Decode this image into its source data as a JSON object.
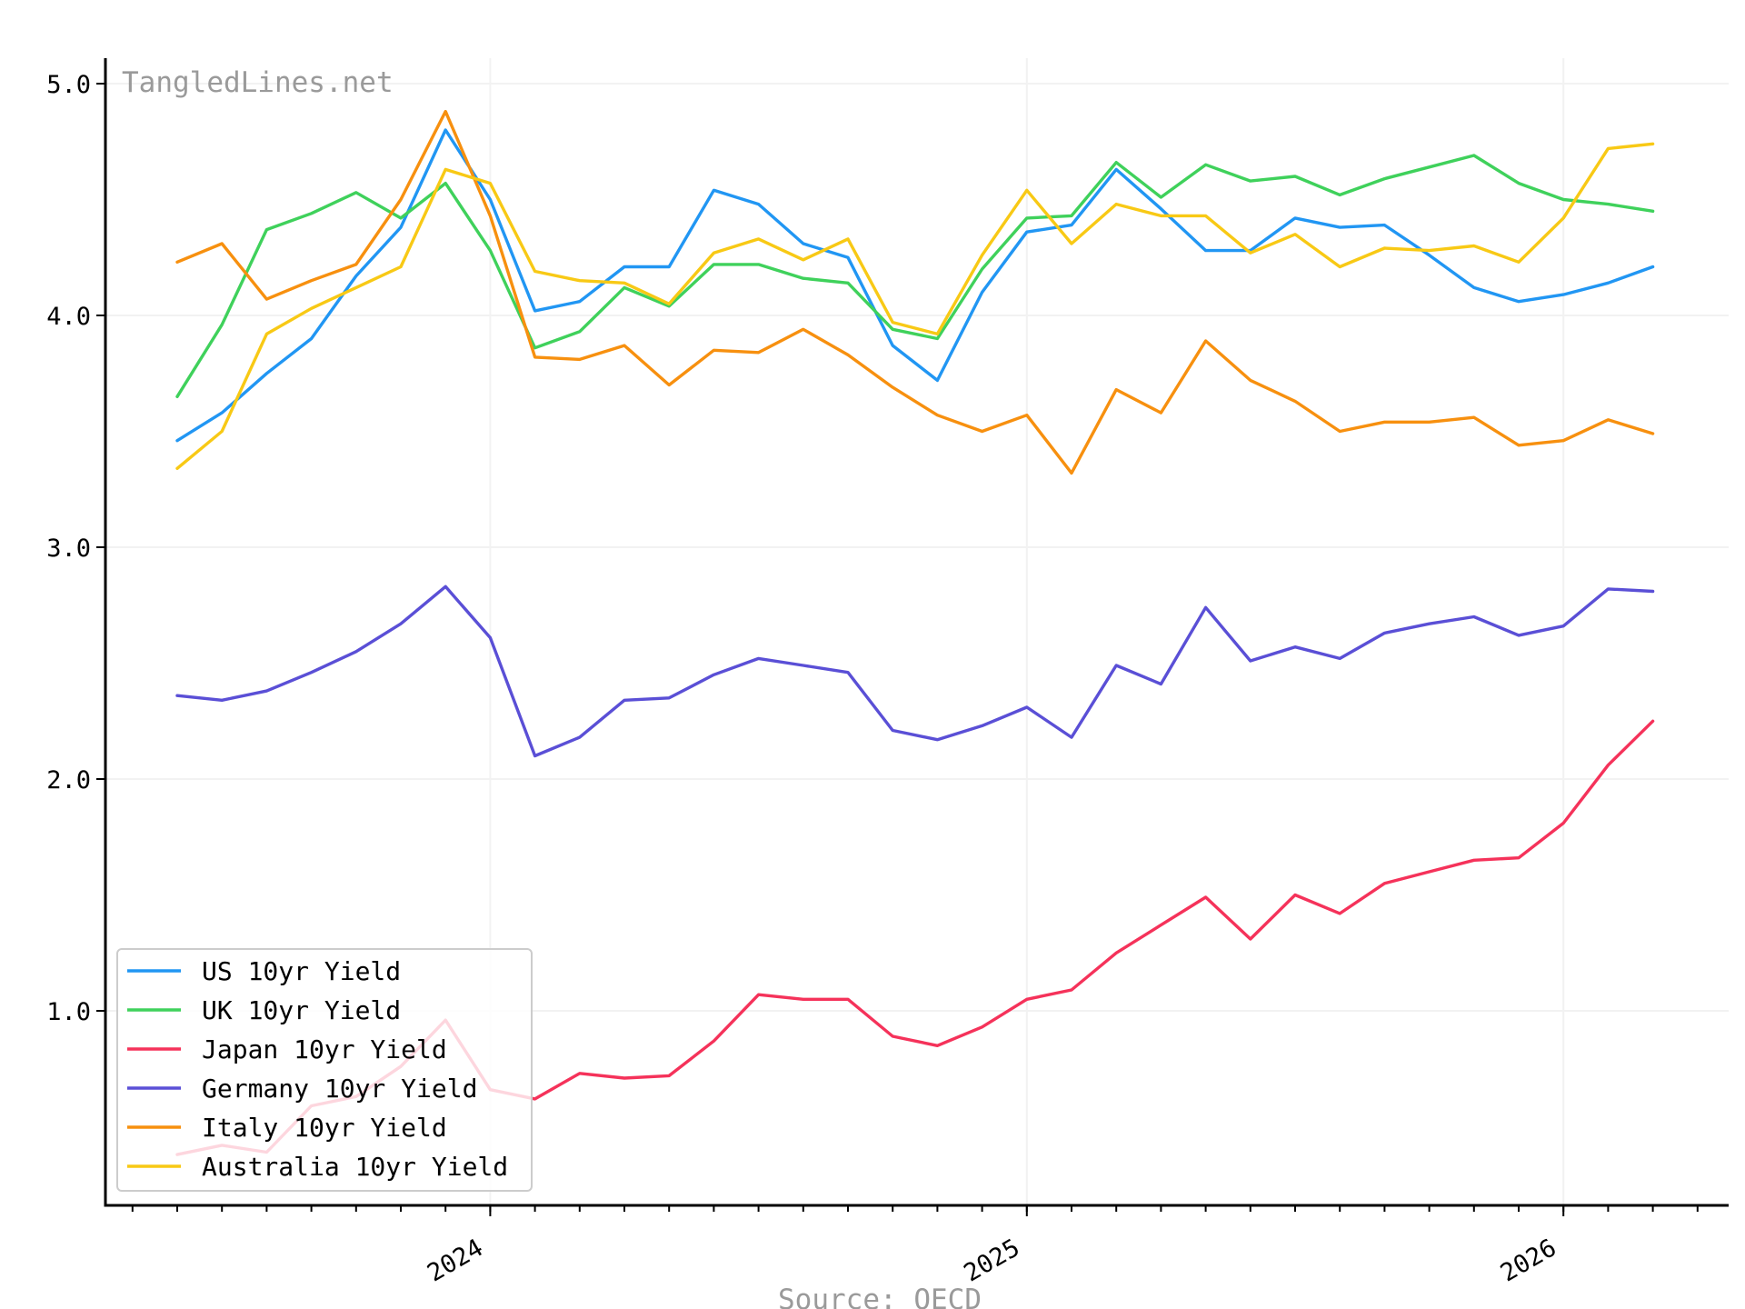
{
  "watermark": "TangledLines.net",
  "source": "Source: OECD",
  "chart_data": {
    "type": "line",
    "title": "",
    "xlabel": "",
    "ylabel": "",
    "x_start": "2023-06",
    "x_ticks": [
      "2024",
      "2025",
      "2026"
    ],
    "y_ticks": [
      "1.0",
      "2.0",
      "3.0",
      "4.0",
      "5.0"
    ],
    "ylim": [
      0.15,
      5.1
    ],
    "grid": true,
    "legend_position": "lower-left",
    "x": [
      "2023-06",
      "2023-07",
      "2023-08",
      "2023-09",
      "2023-10",
      "2023-11",
      "2023-12",
      "2024-01",
      "2024-02",
      "2024-03",
      "2024-04",
      "2024-05",
      "2024-06",
      "2024-07",
      "2024-08",
      "2024-09",
      "2024-10",
      "2024-11",
      "2024-12",
      "2025-01",
      "2025-02",
      "2025-03",
      "2025-04",
      "2025-05",
      "2025-06",
      "2025-07",
      "2025-08",
      "2025-09",
      "2025-10",
      "2025-11",
      "2025-12",
      "2026-01",
      "2026-02",
      "2026-03"
    ],
    "series": [
      {
        "name": "US 10yr Yield",
        "color": "#2196f3",
        "values": [
          3.46,
          3.58,
          3.75,
          3.9,
          4.17,
          4.38,
          4.8,
          4.5,
          4.02,
          4.06,
          4.21,
          4.21,
          4.54,
          4.48,
          4.31,
          4.25,
          3.87,
          3.72,
          4.1,
          4.36,
          4.39,
          4.63,
          4.46,
          4.28,
          4.28,
          4.42,
          4.38,
          4.39,
          4.26,
          4.12,
          4.06,
          4.09,
          4.14,
          4.21
        ]
      },
      {
        "name": "UK 10yr Yield",
        "color": "#3fd15b",
        "values": [
          3.65,
          3.96,
          4.37,
          4.44,
          4.53,
          4.42,
          4.57,
          4.28,
          3.86,
          3.93,
          4.12,
          4.04,
          4.22,
          4.22,
          4.16,
          4.14,
          3.94,
          3.9,
          4.2,
          4.42,
          4.43,
          4.66,
          4.51,
          4.65,
          4.58,
          4.6,
          4.52,
          4.59,
          4.64,
          4.69,
          4.57,
          4.5,
          4.48,
          4.45
        ]
      },
      {
        "name": "Japan 10yr Yield",
        "color": "#f5325a",
        "values": [
          0.38,
          0.42,
          0.39,
          0.59,
          0.63,
          0.76,
          0.96,
          0.66,
          0.62,
          0.73,
          0.71,
          0.72,
          0.87,
          1.07,
          1.05,
          1.05,
          0.89,
          0.85,
          0.93,
          1.05,
          1.09,
          1.25,
          1.37,
          1.49,
          1.31,
          1.5,
          1.42,
          1.55,
          1.6,
          1.65,
          1.66,
          1.81,
          2.06,
          2.25
        ]
      },
      {
        "name": "Germany 10yr Yield",
        "color": "#5a4fd6",
        "values": [
          2.36,
          2.34,
          2.38,
          2.46,
          2.55,
          2.67,
          2.83,
          2.61,
          2.1,
          2.18,
          2.34,
          2.35,
          2.45,
          2.52,
          2.49,
          2.46,
          2.21,
          2.17,
          2.23,
          2.31,
          2.18,
          2.49,
          2.41,
          2.74,
          2.51,
          2.57,
          2.52,
          2.63,
          2.67,
          2.7,
          2.62,
          2.66,
          2.82,
          2.81
        ]
      },
      {
        "name": "Italy 10yr Yield",
        "color": "#f7900f",
        "values": [
          4.23,
          4.31,
          4.07,
          4.15,
          4.22,
          4.5,
          4.88,
          4.43,
          3.82,
          3.81,
          3.87,
          3.7,
          3.85,
          3.84,
          3.94,
          3.83,
          3.69,
          3.57,
          3.5,
          3.57,
          3.32,
          3.68,
          3.58,
          3.89,
          3.72,
          3.63,
          3.5,
          3.54,
          3.54,
          3.56,
          3.44,
          3.46,
          3.55,
          3.49
        ]
      },
      {
        "name": "Australia 10yr Yield",
        "color": "#f8c915",
        "values": [
          3.34,
          3.5,
          3.92,
          4.03,
          4.12,
          4.21,
          4.63,
          4.57,
          4.19,
          4.15,
          4.14,
          4.05,
          4.27,
          4.33,
          4.24,
          4.33,
          3.97,
          3.92,
          4.26,
          4.54,
          4.31,
          4.48,
          4.43,
          4.43,
          4.27,
          4.35,
          4.21,
          4.29,
          4.28,
          4.3,
          4.23,
          4.42,
          4.72,
          4.74
        ]
      }
    ]
  }
}
